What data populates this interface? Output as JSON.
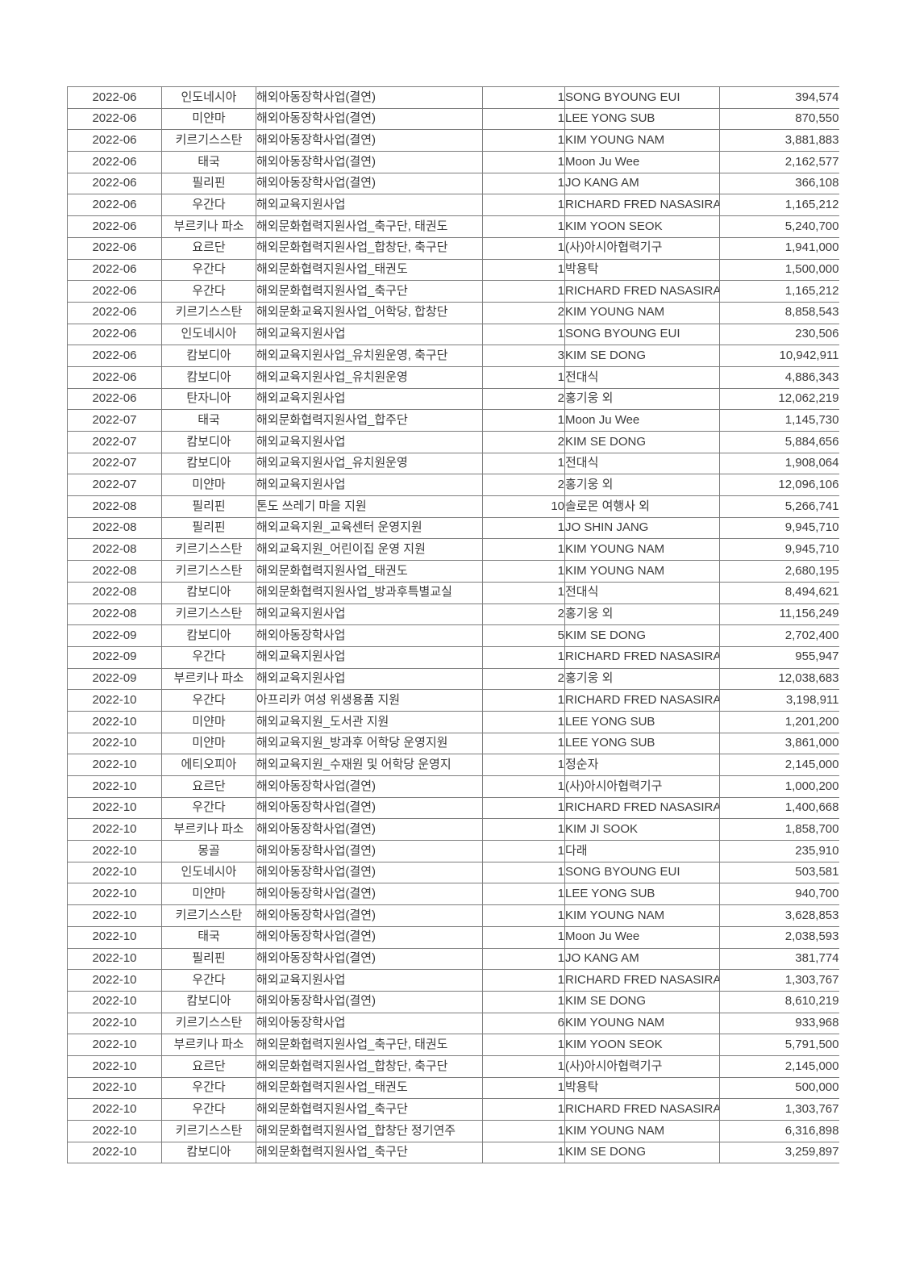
{
  "colors": {
    "border": "#7d7d7d",
    "text": "#3c3c3c",
    "page_background": "#ffffff"
  },
  "table": {
    "column_keys": [
      "date",
      "country",
      "program",
      "count",
      "name",
      "amount"
    ],
    "rows": [
      {
        "date": "2022-06",
        "country": "인도네시아",
        "program": "해외아동장학사업(결연)",
        "count": "1",
        "name": "SONG BYOUNG EUI",
        "amount": "394,574"
      },
      {
        "date": "2022-06",
        "country": "미얀마",
        "program": "해외아동장학사업(결연)",
        "count": "1",
        "name": "LEE YONG SUB",
        "amount": "870,550"
      },
      {
        "date": "2022-06",
        "country": "키르기스스탄",
        "program": "해외아동장학사업(결연)",
        "count": "1",
        "name": "KIM YOUNG NAM",
        "amount": "3,881,883"
      },
      {
        "date": "2022-06",
        "country": "태국",
        "program": "해외아동장학사업(결연)",
        "count": "1",
        "name": "Moon Ju Wee",
        "amount": "2,162,577"
      },
      {
        "date": "2022-06",
        "country": "필리핀",
        "program": "해외아동장학사업(결연)",
        "count": "1",
        "name": "JO KANG AM",
        "amount": "366,108"
      },
      {
        "date": "2022-06",
        "country": "우간다",
        "program": "해외교육지원사업",
        "count": "1",
        "name": "RICHARD FRED NASASIRA",
        "amount": "1,165,212"
      },
      {
        "date": "2022-06",
        "country": "부르키나 파소",
        "program": "해외문화협력지원사업_축구단, 태권도",
        "count": "1",
        "name": "KIM YOON SEOK",
        "amount": "5,240,700"
      },
      {
        "date": "2022-06",
        "country": "요르단",
        "program": "해외문화협력지원사업_합창단, 축구단",
        "count": "1",
        "name": "(사)아시아협력기구",
        "amount": "1,941,000"
      },
      {
        "date": "2022-06",
        "country": "우간다",
        "program": "해외문화협력지원사업_태권도",
        "count": "1",
        "name": "박용탁",
        "amount": "1,500,000"
      },
      {
        "date": "2022-06",
        "country": "우간다",
        "program": "해외문화협력지원사업_축구단",
        "count": "1",
        "name": "RICHARD FRED NASASIRA",
        "amount": "1,165,212"
      },
      {
        "date": "2022-06",
        "country": "키르기스스탄",
        "program": "해외문화교육지원사업_어학당, 합창단",
        "count": "2",
        "name": "KIM YOUNG NAM",
        "amount": "8,858,543"
      },
      {
        "date": "2022-06",
        "country": "인도네시아",
        "program": "해외교육지원사업",
        "count": "1",
        "name": "SONG BYOUNG EUI",
        "amount": "230,506"
      },
      {
        "date": "2022-06",
        "country": "캄보디아",
        "program": "해외교육지원사업_유치원운영, 축구단",
        "count": "3",
        "name": "KIM SE DONG",
        "amount": "10,942,911"
      },
      {
        "date": "2022-06",
        "country": "캄보디아",
        "program": "해외교육지원사업_유치원운영",
        "count": "1",
        "name": "전대식",
        "amount": "4,886,343"
      },
      {
        "date": "2022-06",
        "country": "탄자니아",
        "program": "해외교육지원사업",
        "count": "2",
        "name": "홍기웅 외",
        "amount": "12,062,219"
      },
      {
        "date": "2022-07",
        "country": "태국",
        "program": "해외문화협력지원사업_합주단",
        "count": "1",
        "name": "Moon Ju Wee",
        "amount": "1,145,730"
      },
      {
        "date": "2022-07",
        "country": "캄보디아",
        "program": "해외교육지원사업",
        "count": "2",
        "name": "KIM SE DONG",
        "amount": "5,884,656"
      },
      {
        "date": "2022-07",
        "country": "캄보디아",
        "program": "해외교육지원사업_유치원운영",
        "count": "1",
        "name": "전대식",
        "amount": "1,908,064"
      },
      {
        "date": "2022-07",
        "country": "미얀마",
        "program": "해외교육지원사업",
        "count": "2",
        "name": "홍기웅 외",
        "amount": "12,096,106"
      },
      {
        "date": "2022-08",
        "country": "필리핀",
        "program": "톤도 쓰레기 마을 지원",
        "count": "10",
        "name": "솔로몬 여행사 외",
        "amount": "5,266,741"
      },
      {
        "date": "2022-08",
        "country": "필리핀",
        "program": "해외교육지원_교육센터 운영지원",
        "count": "1",
        "name": "JO SHIN JANG",
        "amount": "9,945,710"
      },
      {
        "date": "2022-08",
        "country": "키르기스스탄",
        "program": "해외교육지원_어린이집 운영 지원",
        "count": "1",
        "name": "KIM YOUNG NAM",
        "amount": "9,945,710"
      },
      {
        "date": "2022-08",
        "country": "키르기스스탄",
        "program": "해외문화협력지원사업_태권도",
        "count": "1",
        "name": "KIM YOUNG NAM",
        "amount": "2,680,195"
      },
      {
        "date": "2022-08",
        "country": "캄보디아",
        "program": "해외문화협력지원사업_방과후특별교실",
        "count": "1",
        "name": "전대식",
        "amount": "8,494,621"
      },
      {
        "date": "2022-08",
        "country": "키르기스스탄",
        "program": "해외교육지원사업",
        "count": "2",
        "name": "홍기웅 외",
        "amount": "11,156,249"
      },
      {
        "date": "2022-09",
        "country": "캄보디아",
        "program": "해외아동장학사업",
        "count": "5",
        "name": "KIM SE DONG",
        "amount": "2,702,400"
      },
      {
        "date": "2022-09",
        "country": "우간다",
        "program": "해외교육지원사업",
        "count": "1",
        "name": "RICHARD FRED NASASIRA",
        "amount": "955,947"
      },
      {
        "date": "2022-09",
        "country": "부르키나 파소",
        "program": "해외교육지원사업",
        "count": "2",
        "name": "홍기웅 외",
        "amount": "12,038,683"
      },
      {
        "date": "2022-10",
        "country": "우간다",
        "program": "아프리카 여성 위생용품 지원",
        "count": "1",
        "name": "RICHARD FRED NASASIRA",
        "amount": "3,198,911"
      },
      {
        "date": "2022-10",
        "country": "미얀마",
        "program": "해외교육지원_도서관 지원",
        "count": "1",
        "name": "LEE YONG SUB",
        "amount": "1,201,200"
      },
      {
        "date": "2022-10",
        "country": "미얀마",
        "program": "해외교육지원_방과후 어학당 운영지원",
        "count": "1",
        "name": "LEE YONG SUB",
        "amount": "3,861,000"
      },
      {
        "date": "2022-10",
        "country": "에티오피아",
        "program": "해외교육지원_수재원 및 어학당 운영지",
        "count": "1",
        "name": "정순자",
        "amount": "2,145,000",
        "program_raised": true
      },
      {
        "date": "2022-10",
        "country": "요르단",
        "program": "해외아동장학사업(결연)",
        "count": "1",
        "name": "(사)아시아협력기구",
        "amount": "1,000,200"
      },
      {
        "date": "2022-10",
        "country": "우간다",
        "program": "해외아동장학사업(결연)",
        "count": "1",
        "name": "RICHARD FRED NASASIRA",
        "amount": "1,400,668"
      },
      {
        "date": "2022-10",
        "country": "부르키나 파소",
        "program": "해외아동장학사업(결연)",
        "count": "1",
        "name": "KIM JI SOOK",
        "amount": "1,858,700"
      },
      {
        "date": "2022-10",
        "country": "몽골",
        "program": "해외아동장학사업(결연)",
        "count": "1",
        "name": "다래",
        "amount": "235,910"
      },
      {
        "date": "2022-10",
        "country": "인도네시아",
        "program": "해외아동장학사업(결연)",
        "count": "1",
        "name": "SONG BYOUNG EUI",
        "amount": "503,581"
      },
      {
        "date": "2022-10",
        "country": "미얀마",
        "program": "해외아동장학사업(결연)",
        "count": "1",
        "name": "LEE YONG SUB",
        "amount": "940,700"
      },
      {
        "date": "2022-10",
        "country": "키르기스스탄",
        "program": "해외아동장학사업(결연)",
        "count": "1",
        "name": "KIM YOUNG NAM",
        "amount": "3,628,853"
      },
      {
        "date": "2022-10",
        "country": "태국",
        "program": "해외아동장학사업(결연)",
        "count": "1",
        "name": "Moon Ju Wee",
        "amount": "2,038,593"
      },
      {
        "date": "2022-10",
        "country": "필리핀",
        "program": "해외아동장학사업(결연)",
        "count": "1",
        "name": "JO KANG AM",
        "amount": "381,774"
      },
      {
        "date": "2022-10",
        "country": "우간다",
        "program": "해외교육지원사업",
        "count": "1",
        "name": "RICHARD FRED NASASIRA",
        "amount": "1,303,767"
      },
      {
        "date": "2022-10",
        "country": "캄보디아",
        "program": "해외아동장학사업(결연)",
        "count": "1",
        "name": "KIM SE DONG",
        "amount": "8,610,219"
      },
      {
        "date": "2022-10",
        "country": "키르기스스탄",
        "program": "해외아동장학사업",
        "count": "6",
        "name": "KIM YOUNG NAM",
        "amount": "933,968"
      },
      {
        "date": "2022-10",
        "country": "부르키나 파소",
        "program": "해외문화협력지원사업_축구단, 태권도",
        "count": "1",
        "name": "KIM YOON SEOK",
        "amount": "5,791,500"
      },
      {
        "date": "2022-10",
        "country": "요르단",
        "program": "해외문화협력지원사업_합창단, 축구단",
        "count": "1",
        "name": "(사)아시아협력기구",
        "amount": "2,145,000"
      },
      {
        "date": "2022-10",
        "country": "우간다",
        "program": "해외문화협력지원사업_태권도",
        "count": "1",
        "name": "박용탁",
        "amount": "500,000"
      },
      {
        "date": "2022-10",
        "country": "우간다",
        "program": "해외문화협력지원사업_축구단",
        "count": "1",
        "name": "RICHARD FRED NASASIRA",
        "amount": "1,303,767"
      },
      {
        "date": "2022-10",
        "country": "키르기스스탄",
        "program": "해외문화협력지원사업_합창단 정기연주",
        "count": "1",
        "name": "KIM YOUNG NAM",
        "amount": "6,316,898",
        "program_raised": true
      },
      {
        "date": "2022-10",
        "country": "캄보디아",
        "program": "해외문화협력지원사업_축구단",
        "count": "1",
        "name": "KIM SE DONG",
        "amount": "3,259,897"
      }
    ]
  }
}
